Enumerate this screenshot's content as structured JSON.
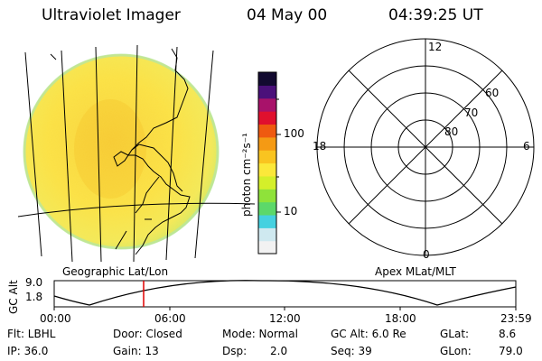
{
  "header": {
    "instrument": "Ultraviolet Imager",
    "date": "04 May 00",
    "time": "04:39:25 UT"
  },
  "colorbar": {
    "unit_label": "photon cm⁻²s⁻¹",
    "tick_100": "100",
    "tick_10": "10",
    "colors": [
      "#f2f2f2",
      "#cfe9f0",
      "#45d1e0",
      "#5cd86a",
      "#8fe23a",
      "#d4ef2a",
      "#fbe83a",
      "#f9c420",
      "#f59a14",
      "#ef5a10",
      "#e0102e",
      "#a8126a",
      "#4a107a",
      "#120a30"
    ]
  },
  "polar": {
    "mlt_top": "12",
    "mlt_left": "18",
    "mlt_right": "6",
    "mlt_bottom": "0",
    "lat_60": "60",
    "lat_70": "70",
    "lat_80": "80"
  },
  "labels": {
    "geo": "Geographic Lat/Lon",
    "apex": "Apex MLat/MLT"
  },
  "altplot": {
    "axis_label": "GC Alt",
    "y_top": "9.0",
    "y_bottom": "1.8",
    "ticks": [
      "00:00",
      "06:00",
      "12:00",
      "18:00",
      "23:59"
    ],
    "marker_color": "#e00000"
  },
  "info": {
    "flt": "Flt: LBHL",
    "ip": "IP: 36.0",
    "door": "Door: Closed",
    "gain": "Gain: 13",
    "mode": "Mode: Normal",
    "dsp_label": "Dsp:",
    "dsp_value": "2.0",
    "gcalt": "GC Alt: 6.0 Re",
    "seq": "Seq: 39",
    "glat_label": "GLat:",
    "glat_value": "8.6",
    "glon_label": "GLon:",
    "glon_value": "79.0"
  }
}
